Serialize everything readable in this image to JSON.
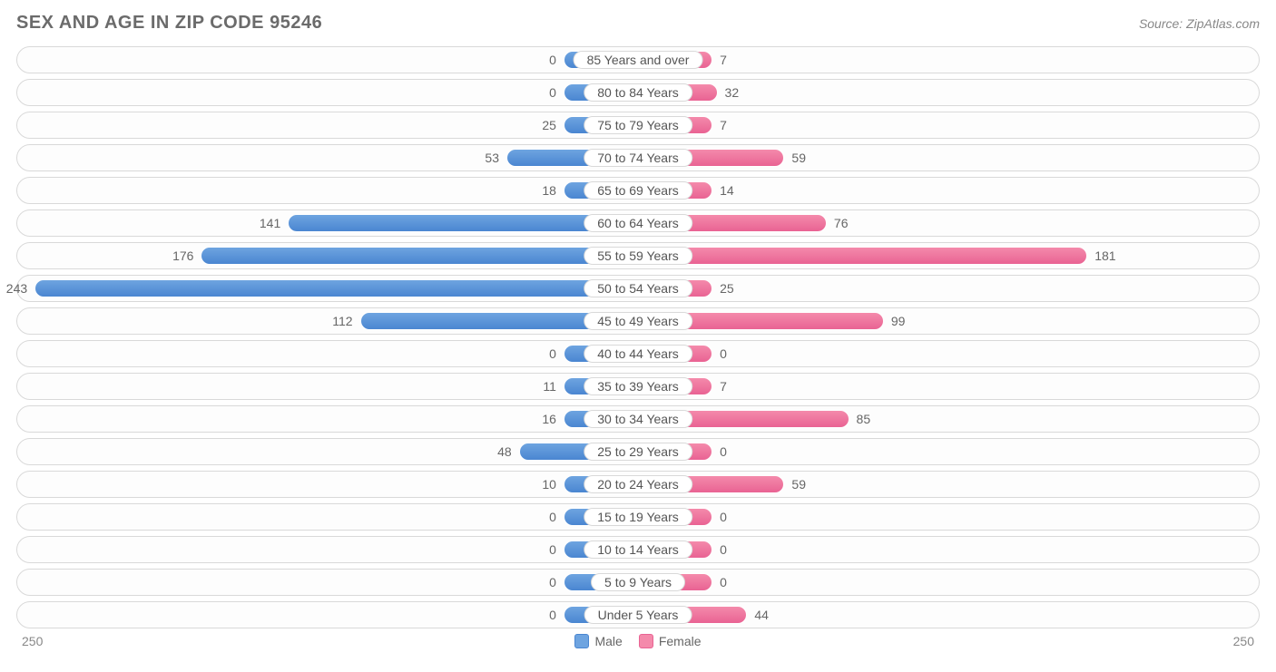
{
  "header": {
    "title": "SEX AND AGE IN ZIP CODE 95246",
    "source": "Source: ZipAtlas.com"
  },
  "chart": {
    "type": "population-pyramid",
    "max_value": 250,
    "min_bar_pct": 12,
    "colors": {
      "male_fill": "#6ea4e0",
      "male_stroke": "#4a86d1",
      "female_fill": "#f48aab",
      "female_stroke": "#e96393",
      "row_border": "#d9d9d9",
      "row_bg": "#fdfdfd",
      "text": "#666666",
      "title_text": "#6b6b6b",
      "source_text": "#888888"
    },
    "rows": [
      {
        "label": "85 Years and over",
        "male": 0,
        "female": 7
      },
      {
        "label": "80 to 84 Years",
        "male": 0,
        "female": 32
      },
      {
        "label": "75 to 79 Years",
        "male": 25,
        "female": 7
      },
      {
        "label": "70 to 74 Years",
        "male": 53,
        "female": 59
      },
      {
        "label": "65 to 69 Years",
        "male": 18,
        "female": 14
      },
      {
        "label": "60 to 64 Years",
        "male": 141,
        "female": 76
      },
      {
        "label": "55 to 59 Years",
        "male": 176,
        "female": 181
      },
      {
        "label": "50 to 54 Years",
        "male": 243,
        "female": 25
      },
      {
        "label": "45 to 49 Years",
        "male": 112,
        "female": 99
      },
      {
        "label": "40 to 44 Years",
        "male": 0,
        "female": 0
      },
      {
        "label": "35 to 39 Years",
        "male": 11,
        "female": 7
      },
      {
        "label": "30 to 34 Years",
        "male": 16,
        "female": 85
      },
      {
        "label": "25 to 29 Years",
        "male": 48,
        "female": 0
      },
      {
        "label": "20 to 24 Years",
        "male": 10,
        "female": 59
      },
      {
        "label": "15 to 19 Years",
        "male": 0,
        "female": 0
      },
      {
        "label": "10 to 14 Years",
        "male": 0,
        "female": 0
      },
      {
        "label": "5 to 9 Years",
        "male": 0,
        "female": 0
      },
      {
        "label": "Under 5 Years",
        "male": 0,
        "female": 44
      }
    ],
    "axis": {
      "left": "250",
      "right": "250"
    },
    "legend": {
      "male": "Male",
      "female": "Female"
    }
  }
}
